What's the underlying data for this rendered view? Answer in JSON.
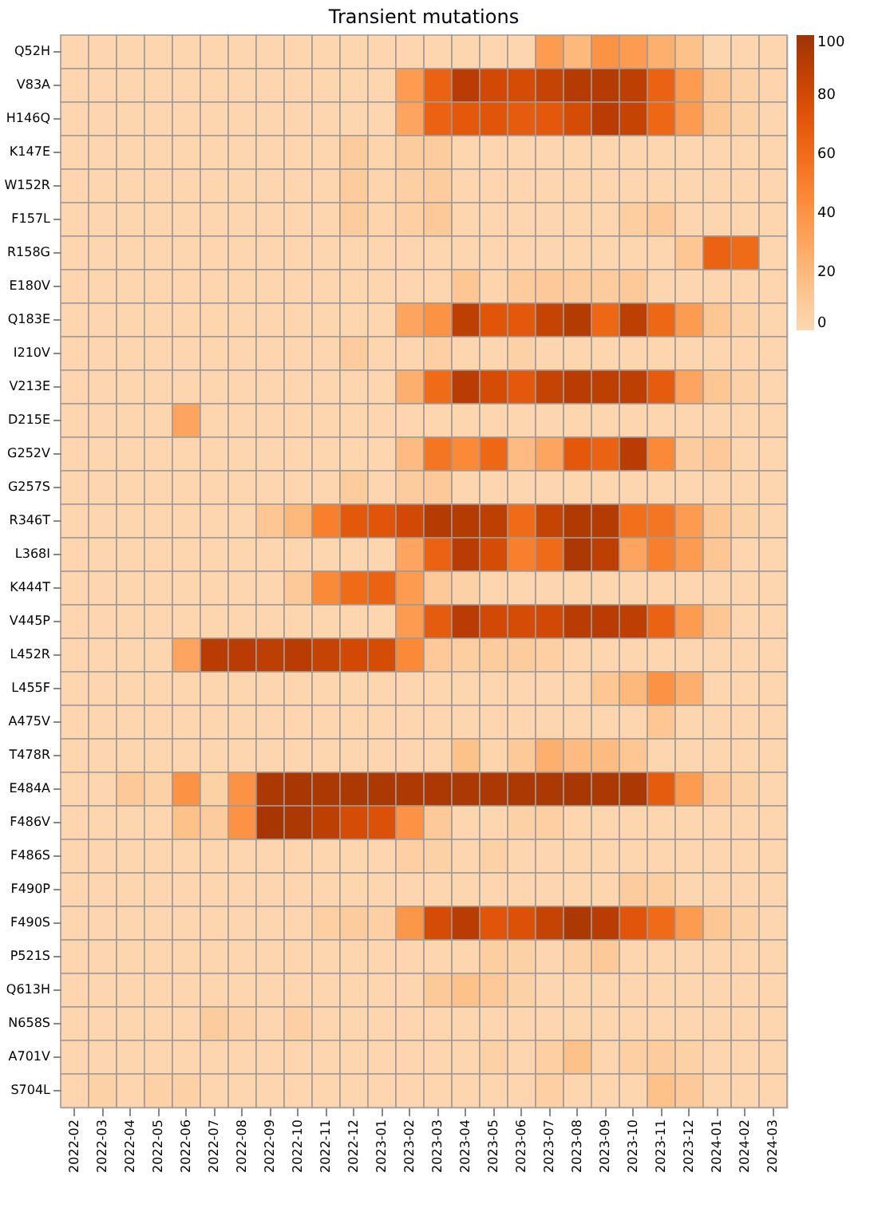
{
  "chart_data": {
    "type": "heatmap",
    "title": "Transient mutations",
    "categories": [
      "2022-02",
      "2022-03",
      "2022-04",
      "2022-05",
      "2022-06",
      "2022-07",
      "2022-08",
      "2022-09",
      "2022-10",
      "2022-11",
      "2022-12",
      "2023-01",
      "2023-02",
      "2023-03",
      "2023-04",
      "2023-05",
      "2023-06",
      "2023-07",
      "2023-08",
      "2023-09",
      "2023-10",
      "2023-11",
      "2023-12",
      "2024-01",
      "2024-02",
      "2024-03"
    ],
    "y_categories": [
      "Q52H",
      "V83A",
      "H146Q",
      "K147E",
      "W152R",
      "F157L",
      "R158G",
      "E180V",
      "Q183E",
      "I210V",
      "V213E",
      "D215E",
      "G252V",
      "G257S",
      "R346T",
      "L368I",
      "K444T",
      "V445P",
      "L452R",
      "L455F",
      "A475V",
      "T478R",
      "E484A",
      "F486V",
      "F486S",
      "F490P",
      "F490S",
      "P521S",
      "Q613H",
      "N658S",
      "A701V",
      "S704L"
    ],
    "cells": [
      [
        2,
        2,
        2,
        2,
        2,
        2,
        2,
        2,
        2,
        2,
        2,
        2,
        2,
        2,
        2,
        2,
        2,
        35,
        20,
        40,
        35,
        25,
        15,
        2,
        2,
        2
      ],
      [
        2,
        2,
        2,
        2,
        2,
        2,
        2,
        2,
        2,
        2,
        2,
        2,
        35,
        65,
        90,
        80,
        78,
        85,
        92,
        92,
        88,
        65,
        35,
        12,
        5,
        3
      ],
      [
        2,
        2,
        2,
        2,
        2,
        2,
        2,
        2,
        2,
        2,
        2,
        2,
        30,
        65,
        70,
        72,
        68,
        70,
        78,
        90,
        85,
        62,
        35,
        12,
        5,
        2
      ],
      [
        2,
        2,
        2,
        2,
        2,
        2,
        2,
        2,
        2,
        2,
        8,
        3,
        8,
        8,
        2,
        2,
        2,
        2,
        2,
        2,
        2,
        2,
        2,
        2,
        2,
        2
      ],
      [
        2,
        2,
        2,
        2,
        2,
        2,
        2,
        2,
        2,
        2,
        8,
        3,
        6,
        8,
        2,
        2,
        2,
        2,
        2,
        2,
        2,
        2,
        2,
        2,
        2,
        2
      ],
      [
        2,
        2,
        2,
        2,
        2,
        2,
        2,
        2,
        2,
        2,
        8,
        3,
        6,
        10,
        2,
        2,
        2,
        2,
        2,
        2,
        7,
        10,
        2,
        2,
        2,
        2
      ],
      [
        2,
        2,
        2,
        2,
        2,
        2,
        2,
        2,
        2,
        2,
        2,
        2,
        2,
        2,
        2,
        2,
        2,
        2,
        2,
        2,
        2,
        2,
        12,
        65,
        60,
        2
      ],
      [
        2,
        2,
        2,
        2,
        2,
        2,
        2,
        2,
        2,
        2,
        2,
        2,
        2,
        2,
        12,
        3,
        8,
        10,
        8,
        8,
        10,
        2,
        2,
        2,
        2,
        2
      ],
      [
        2,
        2,
        2,
        2,
        2,
        2,
        2,
        2,
        2,
        2,
        2,
        2,
        30,
        40,
        88,
        72,
        70,
        85,
        92,
        62,
        88,
        62,
        35,
        12,
        5,
        2
      ],
      [
        2,
        2,
        2,
        2,
        2,
        2,
        2,
        2,
        2,
        2,
        8,
        2,
        2,
        6,
        2,
        2,
        5,
        2,
        2,
        2,
        2,
        2,
        2,
        2,
        2,
        2
      ],
      [
        2,
        2,
        2,
        2,
        2,
        2,
        2,
        2,
        2,
        2,
        2,
        2,
        25,
        60,
        90,
        78,
        70,
        85,
        90,
        88,
        88,
        68,
        30,
        12,
        5,
        2
      ],
      [
        2,
        2,
        2,
        2,
        30,
        2,
        2,
        2,
        2,
        2,
        2,
        2,
        2,
        2,
        2,
        2,
        2,
        2,
        2,
        2,
        2,
        2,
        2,
        2,
        2,
        2
      ],
      [
        2,
        2,
        2,
        2,
        2,
        2,
        2,
        2,
        2,
        2,
        2,
        2,
        18,
        55,
        45,
        62,
        18,
        30,
        70,
        65,
        90,
        45,
        8,
        10,
        2,
        2
      ],
      [
        2,
        2,
        2,
        2,
        2,
        2,
        2,
        2,
        2,
        2,
        8,
        2,
        8,
        10,
        2,
        2,
        2,
        2,
        2,
        2,
        2,
        2,
        2,
        2,
        2,
        2
      ],
      [
        2,
        2,
        2,
        2,
        2,
        2,
        2,
        12,
        20,
        50,
        70,
        72,
        80,
        92,
        92,
        88,
        60,
        85,
        93,
        92,
        58,
        55,
        35,
        12,
        5,
        2
      ],
      [
        2,
        2,
        2,
        2,
        2,
        2,
        2,
        2,
        2,
        2,
        2,
        2,
        30,
        65,
        90,
        78,
        50,
        60,
        95,
        88,
        30,
        50,
        35,
        12,
        2,
        2
      ],
      [
        2,
        2,
        2,
        2,
        2,
        2,
        2,
        2,
        10,
        45,
        60,
        65,
        35,
        10,
        5,
        2,
        2,
        2,
        2,
        2,
        2,
        2,
        2,
        2,
        2,
        2
      ],
      [
        2,
        2,
        2,
        2,
        2,
        2,
        2,
        2,
        2,
        2,
        2,
        2,
        35,
        68,
        90,
        80,
        78,
        80,
        90,
        90,
        88,
        65,
        35,
        12,
        2,
        2
      ],
      [
        2,
        2,
        2,
        2,
        30,
        90,
        90,
        88,
        90,
        85,
        80,
        78,
        45,
        10,
        7,
        8,
        8,
        6,
        2,
        2,
        2,
        2,
        2,
        2,
        2,
        2
      ],
      [
        2,
        2,
        2,
        2,
        2,
        2,
        2,
        2,
        2,
        2,
        2,
        2,
        2,
        2,
        2,
        2,
        2,
        2,
        2,
        12,
        20,
        40,
        25,
        2,
        2,
        2
      ],
      [
        2,
        2,
        2,
        2,
        2,
        2,
        2,
        2,
        2,
        2,
        2,
        2,
        2,
        2,
        2,
        2,
        2,
        2,
        2,
        2,
        2,
        12,
        2,
        2,
        2,
        2
      ],
      [
        2,
        2,
        2,
        2,
        2,
        2,
        2,
        2,
        2,
        2,
        2,
        2,
        2,
        2,
        15,
        3,
        10,
        25,
        18,
        18,
        12,
        2,
        2,
        2,
        2,
        2
      ],
      [
        2,
        2,
        10,
        5,
        40,
        5,
        40,
        95,
        96,
        95,
        95,
        95,
        94,
        95,
        95,
        95,
        95,
        95,
        96,
        95,
        95,
        68,
        35,
        10,
        5,
        2
      ],
      [
        2,
        2,
        2,
        2,
        15,
        8,
        40,
        97,
        95,
        88,
        78,
        75,
        40,
        10,
        2,
        2,
        5,
        6,
        2,
        2,
        2,
        2,
        2,
        2,
        2,
        2
      ],
      [
        2,
        2,
        2,
        2,
        2,
        2,
        2,
        2,
        2,
        2,
        2,
        2,
        6,
        5,
        2,
        5,
        2,
        2,
        2,
        2,
        2,
        2,
        2,
        2,
        2,
        2
      ],
      [
        2,
        2,
        2,
        2,
        2,
        2,
        2,
        2,
        2,
        2,
        2,
        2,
        2,
        2,
        2,
        2,
        2,
        2,
        2,
        2,
        8,
        7,
        2,
        2,
        2,
        2
      ],
      [
        2,
        2,
        2,
        2,
        2,
        2,
        2,
        2,
        2,
        6,
        8,
        6,
        38,
        78,
        90,
        72,
        75,
        85,
        95,
        90,
        72,
        60,
        35,
        12,
        5,
        2
      ],
      [
        2,
        2,
        2,
        2,
        2,
        2,
        2,
        2,
        2,
        2,
        2,
        2,
        2,
        2,
        2,
        7,
        5,
        2,
        5,
        10,
        2,
        2,
        2,
        2,
        2,
        2
      ],
      [
        2,
        2,
        2,
        2,
        2,
        2,
        2,
        2,
        2,
        2,
        2,
        2,
        2,
        10,
        15,
        10,
        5,
        2,
        2,
        2,
        2,
        2,
        2,
        2,
        2,
        2
      ],
      [
        2,
        2,
        2,
        2,
        2,
        8,
        4,
        2,
        6,
        2,
        2,
        2,
        2,
        2,
        2,
        2,
        2,
        2,
        2,
        2,
        2,
        2,
        2,
        2,
        2,
        2
      ],
      [
        2,
        2,
        2,
        2,
        2,
        2,
        2,
        2,
        2,
        2,
        2,
        2,
        2,
        2,
        2,
        5,
        2,
        6,
        15,
        2,
        6,
        8,
        5,
        2,
        2,
        2
      ],
      [
        2,
        5,
        2,
        5,
        5,
        2,
        2,
        2,
        2,
        2,
        2,
        2,
        2,
        2,
        2,
        2,
        2,
        6,
        2,
        2,
        2,
        15,
        10,
        2,
        2,
        2
      ]
    ],
    "clim": [
      0,
      100
    ],
    "cticks": [
      0,
      20,
      40,
      60,
      80,
      100
    ]
  }
}
